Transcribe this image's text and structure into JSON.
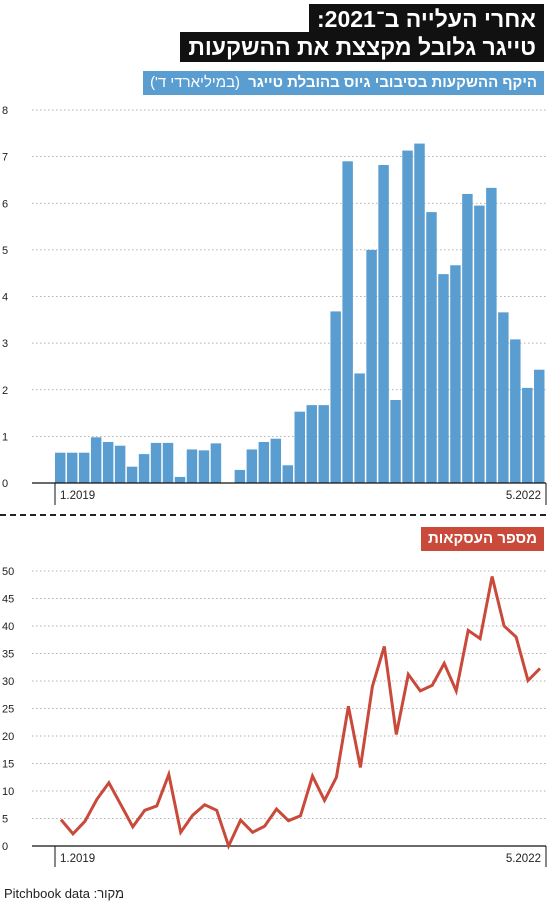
{
  "header": {
    "title_line1": "אחרי העלייה ב־2021:",
    "title_line2": "טייגר גלובל מקצצת את ההשקעות"
  },
  "source": "מקור: Pitchbook data",
  "colors": {
    "bar": "#5a9ed1",
    "line": "#c94a3b",
    "title_bg": "#111111"
  },
  "chart_data": [
    {
      "type": "bar",
      "title": "היקף ההשקעות בסיבובי גיוס בהובלת טייגר",
      "unit_label": "(במיליארדי ד')",
      "ylim": [
        0,
        8
      ],
      "yticks": [
        0,
        1,
        2,
        3,
        4,
        5,
        6,
        7,
        8
      ],
      "grid": true,
      "x_start_label": "1.2019",
      "x_end_label": "5.2022",
      "values": [
        0.65,
        0.65,
        0.65,
        0.98,
        0.88,
        0.8,
        0.35,
        0.62,
        0.86,
        0.86,
        0.13,
        0.72,
        0.7,
        0.85,
        0,
        0.28,
        0.72,
        0.88,
        0.95,
        0.38,
        1.53,
        1.67,
        1.67,
        3.68,
        6.9,
        2.35,
        5.0,
        6.82,
        1.78,
        7.13,
        7.28,
        5.81,
        4.48,
        4.67,
        6.2,
        5.95,
        6.33,
        3.66,
        3.08,
        2.04,
        2.43
      ]
    },
    {
      "type": "line",
      "title": "מספר העסקאות",
      "ylim": [
        0,
        50
      ],
      "yticks": [
        0,
        5,
        10,
        15,
        20,
        25,
        30,
        35,
        40,
        45,
        50
      ],
      "grid": true,
      "x_start_label": "1.2019",
      "x_end_label": "5.2022",
      "values": [
        4.8,
        2.2,
        4.5,
        8.5,
        11.5,
        7.5,
        3.5,
        6.5,
        7.3,
        13,
        2.5,
        5.6,
        7.5,
        6.5,
        0,
        4.7,
        2.5,
        3.6,
        6.7,
        4.6,
        5.5,
        12.7,
        8.3,
        12.5,
        25.4,
        14.3,
        29,
        36.3,
        20.3,
        31.2,
        28.2,
        29.2,
        33.2,
        28.2,
        39.2,
        37.7,
        49,
        40,
        38,
        30.1,
        32.3
      ]
    }
  ]
}
